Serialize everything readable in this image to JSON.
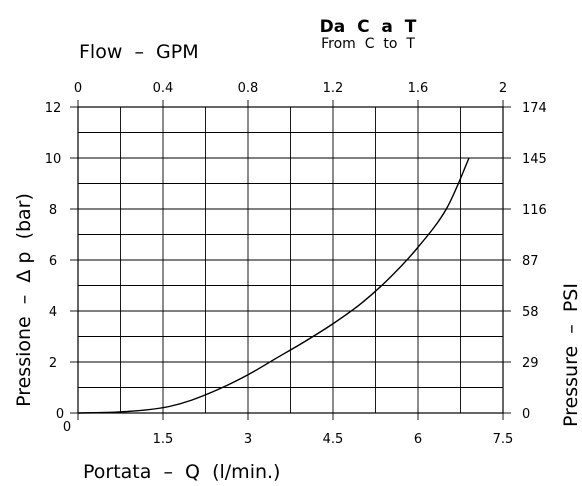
{
  "chart_data": {
    "type": "line",
    "title": "Da  C  a  T",
    "subtitle": "From  C  to  T",
    "xlabel": "Portata  –  Q  (l/min.)",
    "ylabel": "Pressione  –  Δ p  (bar)",
    "x2label": "Flow  –  GPM",
    "y2label": "Pressure  –  PSI",
    "xlim": [
      0,
      7.5
    ],
    "ylim": [
      0,
      12
    ],
    "x2lim": [
      0,
      2
    ],
    "grid": true,
    "x_ticks": [
      "0",
      "1.5",
      "3",
      "4.5",
      "6",
      "7.5"
    ],
    "y_ticks": [
      "0",
      "2",
      "4",
      "6",
      "8",
      "10",
      "12"
    ],
    "x2_ticks": [
      "0",
      "0.4",
      "0.8",
      "1.2",
      "1.6",
      "2"
    ],
    "y2_ticks": [
      "0",
      "29",
      "58",
      "87",
      "116",
      "145",
      "174"
    ],
    "series": [
      {
        "x": [
          0,
          0.5,
          0.8,
          1.2,
          1.6,
          2.0,
          2.5,
          3.0,
          3.5,
          4.0,
          4.5,
          5.0,
          5.5,
          6.0,
          6.5,
          6.9
        ],
        "y": [
          0,
          0.02,
          0.05,
          0.12,
          0.25,
          0.5,
          0.95,
          1.5,
          2.15,
          2.8,
          3.5,
          4.3,
          5.3,
          6.5,
          8.0,
          10.0
        ]
      }
    ]
  }
}
